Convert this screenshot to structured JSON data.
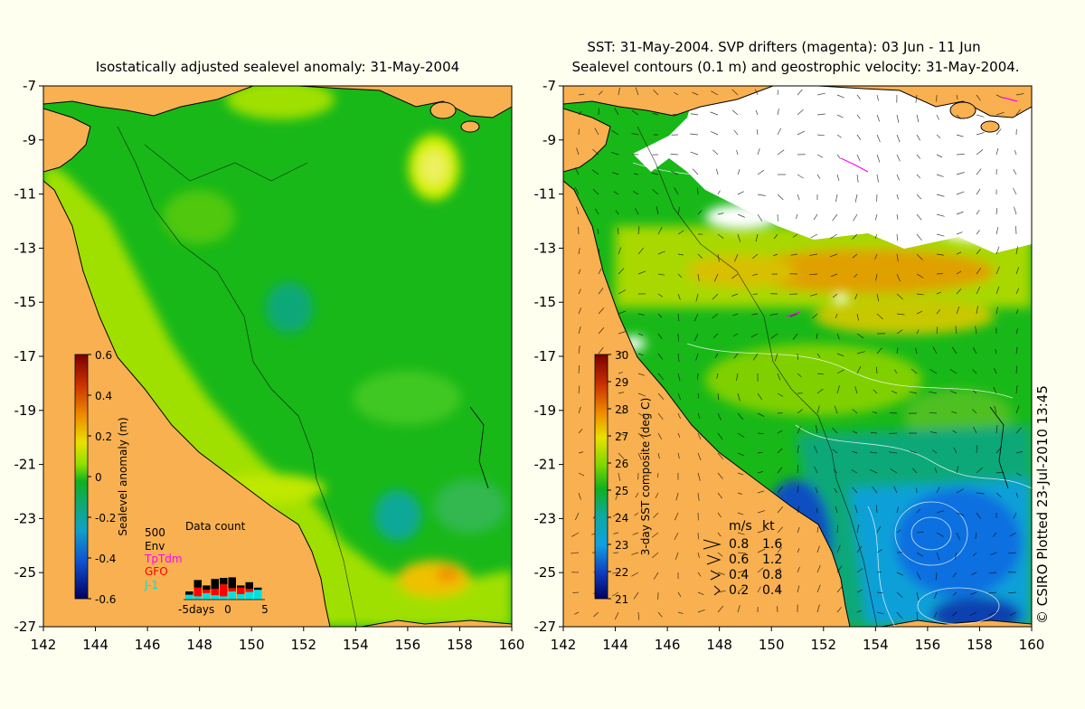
{
  "left_panel": {
    "title": "Isostatically adjusted sealevel anomaly: 31-May-2004",
    "y_ticks": [
      "-7",
      "-9",
      "-11",
      "-13",
      "-15",
      "-17",
      "-19",
      "-21",
      "-23",
      "-25",
      "-27"
    ],
    "x_ticks": [
      "142",
      "144",
      "146",
      "148",
      "150",
      "152",
      "154",
      "156",
      "158",
      "160"
    ],
    "colorbar": {
      "label": "Sealevel anomaly (m)",
      "ticks": [
        "0.6",
        "0.4",
        "0.2",
        "0",
        "-0.2",
        "-0.4",
        "-0.6"
      ],
      "range": [
        -0.6,
        0.6
      ]
    },
    "data_count": {
      "title": "Data count",
      "max_label": "500",
      "legend": [
        {
          "name": "Env",
          "color": "#000000"
        },
        {
          "name": "TpTdm",
          "color": "#ff00ff"
        },
        {
          "name": "GFO",
          "color": "#ff0000"
        },
        {
          "name": "J-1",
          "color": "#00e0e0"
        }
      ],
      "axis_left": "-5days",
      "axis_mid": "0",
      "axis_right": "5",
      "days": [
        {
          "day": -4,
          "j1": 90,
          "tp": 0,
          "gfo": 0,
          "env": 60
        },
        {
          "day": -3,
          "j1": 60,
          "tp": 0,
          "gfo": 160,
          "env": 140
        },
        {
          "day": -2,
          "j1": 120,
          "tp": 0,
          "gfo": 60,
          "env": 80
        },
        {
          "day": -1,
          "j1": 80,
          "tp": 0,
          "gfo": 120,
          "env": 180
        },
        {
          "day": 0,
          "j1": 60,
          "tp": 0,
          "gfo": 220,
          "env": 120
        },
        {
          "day": 1,
          "j1": 150,
          "tp": 0,
          "gfo": 60,
          "env": 200
        },
        {
          "day": 2,
          "j1": 100,
          "tp": 0,
          "gfo": 120,
          "env": 40
        },
        {
          "day": 3,
          "j1": 140,
          "tp": 0,
          "gfo": 60,
          "env": 120
        },
        {
          "day": 4,
          "j1": 180,
          "tp": 0,
          "gfo": 0,
          "env": 40
        }
      ]
    }
  },
  "right_panel": {
    "title_line1": "SST: 31-May-2004. SVP drifters (magenta): 03 Jun - 11 Jun",
    "title_line2": "Sealevel contours (0.1 m) and geostrophic velocity: 31-May-2004.",
    "y_ticks": [
      "-7",
      "-9",
      "-11",
      "-13",
      "-15",
      "-17",
      "-19",
      "-21",
      "-23",
      "-25",
      "-27"
    ],
    "x_ticks": [
      "142",
      "144",
      "146",
      "148",
      "150",
      "152",
      "154",
      "156",
      "158",
      "160"
    ],
    "colorbar": {
      "label": "3-day SST composite (deg C)",
      "ticks": [
        "30",
        "29",
        "28",
        "27",
        "26",
        "25",
        "24",
        "23",
        "22",
        "21"
      ],
      "range": [
        21,
        30
      ]
    },
    "velocity_legend": {
      "header_ms": "m/s",
      "header_kt": "kt",
      "rows": [
        {
          "ms": "0.8",
          "kt": "1.6"
        },
        {
          "ms": "0.6",
          "kt": "1.2"
        },
        {
          "ms": "0.4",
          "kt": "0.8"
        },
        {
          "ms": "0.2",
          "kt": "0.4"
        }
      ]
    },
    "credit": "© CSIRO Plotted 23-Jul-2010 13:45"
  },
  "colors": {
    "land": "#f8b050",
    "background": "#fffff0",
    "cloud": "#ffffff",
    "sea_green": "#18b818"
  }
}
